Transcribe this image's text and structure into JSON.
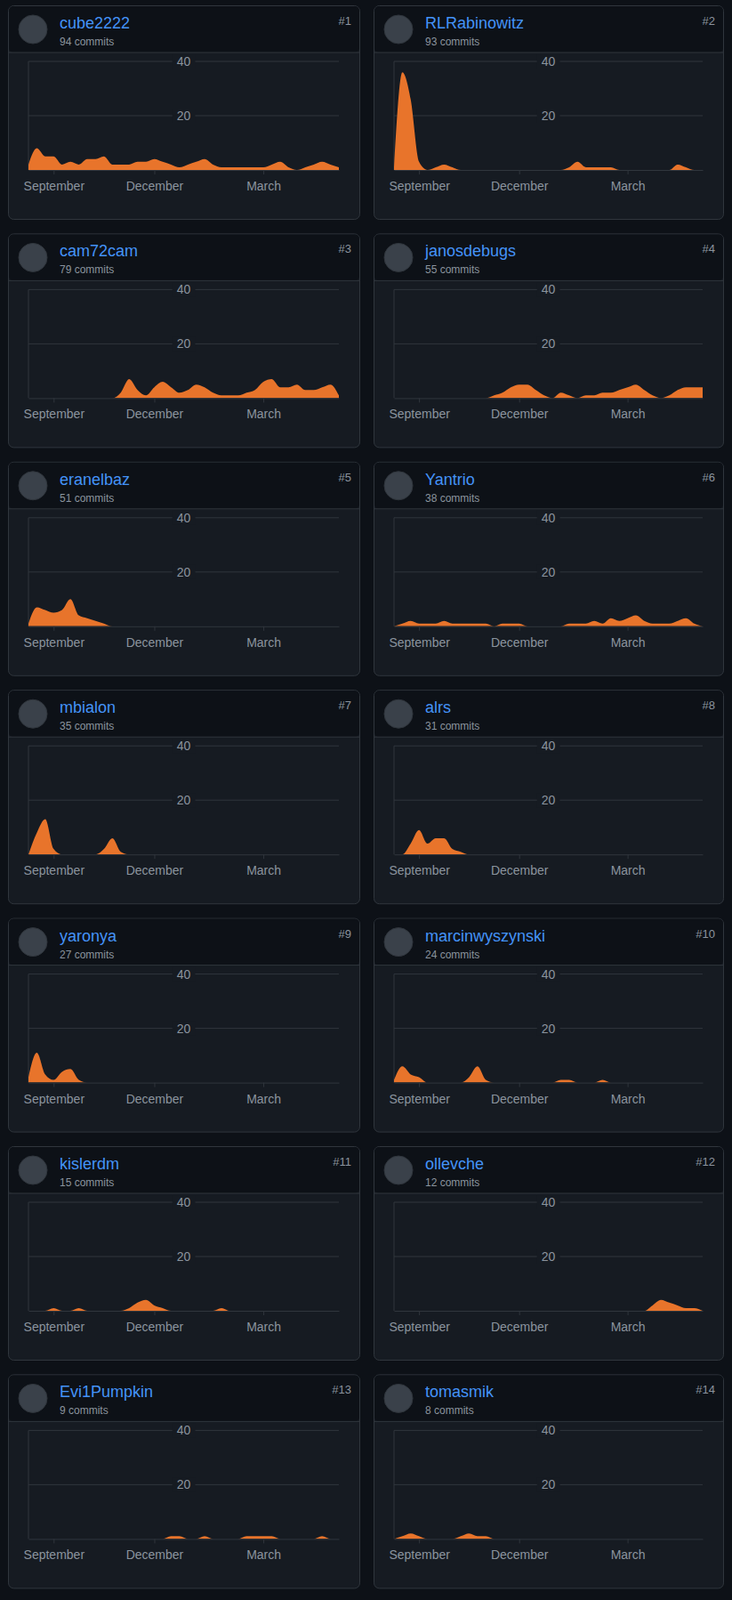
{
  "chart_data": [
    {
      "type": "area",
      "title": "cube2222",
      "subtitle": "94 commits",
      "annotations": [
        "#1"
      ],
      "color": "#e8742b",
      "grid": true,
      "ylim": [
        0,
        40
      ],
      "yticks": [
        20,
        40
      ],
      "categories": [
        null,
        null,
        null,
        "September",
        null,
        null,
        null,
        null,
        null,
        null,
        null,
        null,
        null,
        null,
        null,
        "December",
        null,
        null,
        null,
        null,
        null,
        null,
        null,
        null,
        null,
        null,
        null,
        null,
        "March",
        null,
        null,
        null,
        null,
        null,
        null,
        null,
        null,
        null
      ],
      "values": [
        2,
        8,
        5,
        5,
        2,
        3,
        2,
        4,
        4,
        5,
        2,
        2,
        2,
        3,
        3,
        4,
        3,
        2,
        1,
        2,
        3,
        4,
        2,
        1,
        1,
        1,
        1,
        1,
        1,
        2,
        3,
        1,
        0,
        1,
        2,
        3,
        2,
        1
      ]
    },
    {
      "type": "area",
      "title": "RLRabinowitz",
      "subtitle": "93 commits",
      "annotations": [
        "#2"
      ],
      "color": "#e8742b",
      "grid": true,
      "ylim": [
        0,
        40
      ],
      "yticks": [
        20,
        40
      ],
      "categories": [
        null,
        null,
        null,
        "September",
        null,
        null,
        null,
        null,
        null,
        null,
        null,
        null,
        null,
        null,
        null,
        "December",
        null,
        null,
        null,
        null,
        null,
        null,
        null,
        null,
        null,
        null,
        null,
        null,
        "March",
        null,
        null,
        null,
        null,
        null,
        null,
        null,
        null,
        null
      ],
      "values": [
        1,
        36,
        26,
        3,
        0,
        1,
        2,
        1,
        0,
        0,
        0,
        0,
        0,
        0,
        0,
        0,
        0,
        0,
        0,
        0,
        0,
        1,
        3,
        1,
        1,
        1,
        1,
        0,
        0,
        0,
        0,
        0,
        0,
        0,
        2,
        1,
        0,
        0
      ]
    },
    {
      "type": "area",
      "title": "cam72cam",
      "subtitle": "79 commits",
      "annotations": [
        "#3"
      ],
      "color": "#e8742b",
      "grid": true,
      "ylim": [
        0,
        40
      ],
      "yticks": [
        20,
        40
      ],
      "categories": [
        null,
        null,
        null,
        "September",
        null,
        null,
        null,
        null,
        null,
        null,
        null,
        null,
        null,
        null,
        null,
        "December",
        null,
        null,
        null,
        null,
        null,
        null,
        null,
        null,
        null,
        null,
        null,
        null,
        "March",
        null,
        null,
        null,
        null,
        null,
        null,
        null,
        null,
        null
      ],
      "values": [
        0,
        0,
        0,
        0,
        0,
        0,
        0,
        0,
        0,
        0,
        0,
        2,
        7,
        3,
        1,
        4,
        6,
        4,
        2,
        3,
        5,
        4,
        2,
        1,
        1,
        1,
        2,
        3,
        6,
        7,
        4,
        4,
        5,
        3,
        3,
        4,
        5,
        1
      ]
    },
    {
      "type": "area",
      "title": "janosdebugs",
      "subtitle": "55 commits",
      "annotations": [
        "#4"
      ],
      "color": "#e8742b",
      "grid": true,
      "ylim": [
        0,
        40
      ],
      "yticks": [
        20,
        40
      ],
      "categories": [
        null,
        null,
        null,
        "September",
        null,
        null,
        null,
        null,
        null,
        null,
        null,
        null,
        null,
        null,
        null,
        "December",
        null,
        null,
        null,
        null,
        null,
        null,
        null,
        null,
        null,
        null,
        null,
        null,
        "March",
        null,
        null,
        null,
        null,
        null,
        null,
        null,
        null,
        null
      ],
      "values": [
        0,
        0,
        0,
        0,
        0,
        0,
        0,
        0,
        0,
        0,
        0,
        0,
        1,
        2,
        4,
        5,
        5,
        3,
        1,
        0,
        2,
        1,
        0,
        1,
        1,
        2,
        2,
        3,
        4,
        5,
        3,
        1,
        0,
        1,
        3,
        4,
        4,
        4
      ]
    },
    {
      "type": "area",
      "title": "eranelbaz",
      "subtitle": "51 commits",
      "annotations": [
        "#5"
      ],
      "color": "#e8742b",
      "grid": true,
      "ylim": [
        0,
        40
      ],
      "yticks": [
        20,
        40
      ],
      "categories": [
        null,
        null,
        null,
        "September",
        null,
        null,
        null,
        null,
        null,
        null,
        null,
        null,
        null,
        null,
        null,
        "December",
        null,
        null,
        null,
        null,
        null,
        null,
        null,
        null,
        null,
        null,
        null,
        null,
        "March",
        null,
        null,
        null,
        null,
        null,
        null,
        null,
        null,
        null
      ],
      "values": [
        1,
        7,
        6,
        5,
        6,
        10,
        4,
        3,
        2,
        1,
        0,
        0,
        0,
        0,
        0,
        0,
        0,
        0,
        0,
        0,
        0,
        0,
        0,
        0,
        0,
        0,
        0,
        0,
        0,
        0,
        0,
        0,
        0,
        0,
        0,
        0,
        0,
        0
      ]
    },
    {
      "type": "area",
      "title": "Yantrio",
      "subtitle": "38 commits",
      "annotations": [
        "#6"
      ],
      "color": "#e8742b",
      "grid": true,
      "ylim": [
        0,
        40
      ],
      "yticks": [
        20,
        40
      ],
      "categories": [
        null,
        null,
        null,
        "September",
        null,
        null,
        null,
        null,
        null,
        null,
        null,
        null,
        null,
        null,
        null,
        "December",
        null,
        null,
        null,
        null,
        null,
        null,
        null,
        null,
        null,
        null,
        null,
        null,
        "March",
        null,
        null,
        null,
        null,
        null,
        null,
        null,
        null,
        null
      ],
      "values": [
        0,
        1,
        2,
        1,
        1,
        1,
        2,
        1,
        1,
        1,
        1,
        1,
        0,
        1,
        1,
        1,
        0,
        0,
        0,
        0,
        0,
        1,
        1,
        1,
        2,
        1,
        3,
        2,
        3,
        4,
        2,
        1,
        1,
        1,
        2,
        3,
        1,
        0
      ]
    },
    {
      "type": "area",
      "title": "mbialon",
      "subtitle": "35 commits",
      "annotations": [
        "#7"
      ],
      "color": "#e8742b",
      "grid": true,
      "ylim": [
        0,
        40
      ],
      "yticks": [
        20,
        40
      ],
      "categories": [
        null,
        null,
        null,
        "September",
        null,
        null,
        null,
        null,
        null,
        null,
        null,
        null,
        null,
        null,
        null,
        "December",
        null,
        null,
        null,
        null,
        null,
        null,
        null,
        null,
        null,
        null,
        null,
        null,
        "March",
        null,
        null,
        null,
        null,
        null,
        null,
        null,
        null,
        null
      ],
      "values": [
        0,
        8,
        13,
        2,
        0,
        0,
        0,
        0,
        0,
        2,
        6,
        1,
        0,
        0,
        0,
        0,
        0,
        0,
        0,
        0,
        0,
        0,
        0,
        0,
        0,
        0,
        0,
        0,
        0,
        0,
        0,
        0,
        0,
        0,
        0,
        0,
        0,
        0
      ]
    },
    {
      "type": "area",
      "title": "alrs",
      "subtitle": "31 commits",
      "annotations": [
        "#8"
      ],
      "color": "#e8742b",
      "grid": true,
      "ylim": [
        0,
        40
      ],
      "yticks": [
        20,
        40
      ],
      "categories": [
        null,
        null,
        null,
        "September",
        null,
        null,
        null,
        null,
        null,
        null,
        null,
        null,
        null,
        null,
        null,
        "December",
        null,
        null,
        null,
        null,
        null,
        null,
        null,
        null,
        null,
        null,
        null,
        null,
        "March",
        null,
        null,
        null,
        null,
        null,
        null,
        null,
        null,
        null
      ],
      "values": [
        0,
        0,
        4,
        9,
        4,
        6,
        6,
        2,
        1,
        0,
        0,
        0,
        0,
        0,
        0,
        0,
        0,
        0,
        0,
        0,
        0,
        0,
        0,
        0,
        0,
        0,
        0,
        0,
        0,
        0,
        0,
        0,
        0,
        0,
        0,
        0,
        0,
        0
      ]
    },
    {
      "type": "area",
      "title": "yaronya",
      "subtitle": "27 commits",
      "annotations": [
        "#9"
      ],
      "color": "#e8742b",
      "grid": true,
      "ylim": [
        0,
        40
      ],
      "yticks": [
        20,
        40
      ],
      "categories": [
        null,
        null,
        null,
        "September",
        null,
        null,
        null,
        null,
        null,
        null,
        null,
        null,
        null,
        null,
        null,
        "December",
        null,
        null,
        null,
        null,
        null,
        null,
        null,
        null,
        null,
        null,
        null,
        null,
        "March",
        null,
        null,
        null,
        null,
        null,
        null,
        null,
        null,
        null
      ],
      "values": [
        2,
        11,
        3,
        1,
        4,
        5,
        1,
        0,
        0,
        0,
        0,
        0,
        0,
        0,
        0,
        0,
        0,
        0,
        0,
        0,
        0,
        0,
        0,
        0,
        0,
        0,
        0,
        0,
        0,
        0,
        0,
        0,
        0,
        0,
        0,
        0,
        0,
        0
      ]
    },
    {
      "type": "area",
      "title": "marcinwyszynski",
      "subtitle": "24 commits",
      "annotations": [
        "#10"
      ],
      "color": "#e8742b",
      "grid": true,
      "ylim": [
        0,
        40
      ],
      "yticks": [
        20,
        40
      ],
      "categories": [
        null,
        null,
        null,
        "September",
        null,
        null,
        null,
        null,
        null,
        null,
        null,
        null,
        null,
        null,
        null,
        "December",
        null,
        null,
        null,
        null,
        null,
        null,
        null,
        null,
        null,
        null,
        null,
        null,
        "March",
        null,
        null,
        null,
        null,
        null,
        null,
        null,
        null,
        null
      ],
      "values": [
        1,
        6,
        3,
        2,
        0,
        0,
        0,
        0,
        0,
        2,
        6,
        1,
        0,
        0,
        0,
        0,
        0,
        0,
        0,
        0,
        1,
        1,
        0,
        0,
        0,
        1,
        0,
        0,
        0,
        0,
        0,
        0,
        0,
        0,
        0,
        0,
        0,
        0
      ]
    },
    {
      "type": "area",
      "title": "kislerdm",
      "subtitle": "15 commits",
      "annotations": [
        "#11"
      ],
      "color": "#e8742b",
      "grid": true,
      "ylim": [
        0,
        40
      ],
      "yticks": [
        20,
        40
      ],
      "categories": [
        null,
        null,
        null,
        "September",
        null,
        null,
        null,
        null,
        null,
        null,
        null,
        null,
        null,
        null,
        null,
        "December",
        null,
        null,
        null,
        null,
        null,
        null,
        null,
        null,
        null,
        null,
        null,
        null,
        "March",
        null,
        null,
        null,
        null,
        null,
        null,
        null,
        null,
        null
      ],
      "values": [
        0,
        0,
        0,
        1,
        0,
        0,
        1,
        0,
        0,
        0,
        0,
        0,
        1,
        3,
        4,
        2,
        1,
        0,
        0,
        0,
        0,
        0,
        0,
        1,
        0,
        0,
        0,
        0,
        0,
        0,
        0,
        0,
        0,
        0,
        0,
        0,
        0,
        0
      ]
    },
    {
      "type": "area",
      "title": "ollevche",
      "subtitle": "12 commits",
      "annotations": [
        "#12"
      ],
      "color": "#e8742b",
      "grid": true,
      "ylim": [
        0,
        40
      ],
      "yticks": [
        20,
        40
      ],
      "categories": [
        null,
        null,
        null,
        "September",
        null,
        null,
        null,
        null,
        null,
        null,
        null,
        null,
        null,
        null,
        null,
        "December",
        null,
        null,
        null,
        null,
        null,
        null,
        null,
        null,
        null,
        null,
        null,
        null,
        "March",
        null,
        null,
        null,
        null,
        null,
        null,
        null,
        null,
        null
      ],
      "values": [
        0,
        0,
        0,
        0,
        0,
        0,
        0,
        0,
        0,
        0,
        0,
        0,
        0,
        0,
        0,
        0,
        0,
        0,
        0,
        0,
        0,
        0,
        0,
        0,
        0,
        0,
        0,
        0,
        0,
        0,
        0,
        2,
        4,
        3,
        2,
        1,
        1,
        0
      ]
    },
    {
      "type": "area",
      "title": "Evi1Pumpkin",
      "subtitle": "9 commits",
      "annotations": [
        "#13"
      ],
      "color": "#e8742b",
      "grid": true,
      "ylim": [
        0,
        40
      ],
      "yticks": [
        20,
        40
      ],
      "categories": [
        null,
        null,
        null,
        "September",
        null,
        null,
        null,
        null,
        null,
        null,
        null,
        null,
        null,
        null,
        null,
        "December",
        null,
        null,
        null,
        null,
        null,
        null,
        null,
        null,
        null,
        null,
        null,
        null,
        "March",
        null,
        null,
        null,
        null,
        null,
        null,
        null,
        null,
        null
      ],
      "values": [
        0,
        0,
        0,
        0,
        0,
        0,
        0,
        0,
        0,
        0,
        0,
        0,
        0,
        0,
        0,
        0,
        0,
        1,
        1,
        0,
        0,
        1,
        0,
        0,
        0,
        0,
        1,
        1,
        1,
        1,
        0,
        0,
        0,
        0,
        0,
        1,
        0,
        0
      ]
    },
    {
      "type": "area",
      "title": "tomasmik",
      "subtitle": "8 commits",
      "annotations": [
        "#14"
      ],
      "color": "#e8742b",
      "grid": true,
      "ylim": [
        0,
        40
      ],
      "yticks": [
        20,
        40
      ],
      "categories": [
        null,
        null,
        null,
        "September",
        null,
        null,
        null,
        null,
        null,
        null,
        null,
        null,
        null,
        null,
        null,
        "December",
        null,
        null,
        null,
        null,
        null,
        null,
        null,
        null,
        null,
        null,
        null,
        null,
        "March",
        null,
        null,
        null,
        null,
        null,
        null,
        null,
        null,
        null
      ],
      "values": [
        0,
        1,
        2,
        1,
        0,
        0,
        0,
        0,
        1,
        2,
        1,
        1,
        0,
        0,
        0,
        0,
        0,
        0,
        0,
        0,
        0,
        0,
        0,
        0,
        0,
        0,
        0,
        0,
        0,
        0,
        0,
        0,
        0,
        0,
        0,
        0,
        0,
        0
      ]
    }
  ]
}
